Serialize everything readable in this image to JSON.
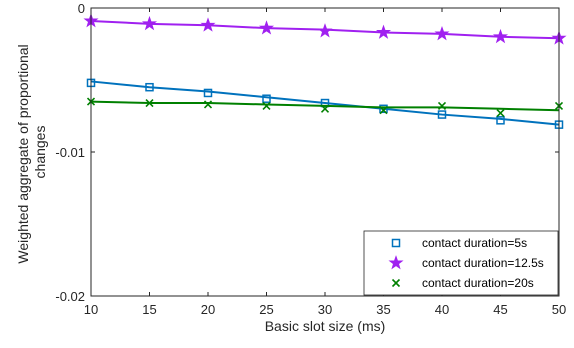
{
  "chart_data": {
    "type": "line",
    "xlabel": "Basic slot size (ms)",
    "ylabel_lines": [
      "Weighted aggregate of proportional",
      "changes"
    ],
    "x": [
      10,
      15,
      20,
      25,
      30,
      35,
      40,
      45,
      50
    ],
    "xlim": [
      10,
      50
    ],
    "ylim": [
      -0.02,
      0
    ],
    "x_ticks": [
      10,
      15,
      20,
      25,
      30,
      35,
      40,
      45,
      50
    ],
    "y_ticks": [
      0,
      -0.01,
      -0.02
    ],
    "y_tick_labels": [
      "0",
      "-0.01",
      "-0.02"
    ],
    "grid": false,
    "legend_position": "bottom-right",
    "series": [
      {
        "name": "contact duration=5s",
        "marker": "square",
        "color": "#0072BD",
        "markers": [
          -0.0052,
          -0.0055,
          -0.0059,
          -0.0063,
          -0.0066,
          -0.007,
          -0.0074,
          -0.0078,
          -0.0081
        ],
        "fit": [
          -0.0051,
          -0.0055,
          -0.0058,
          -0.0062,
          -0.0066,
          -0.007,
          -0.0074,
          -0.0077,
          -0.0081
        ]
      },
      {
        "name": "contact duration=12.5s",
        "marker": "star",
        "color": "#A020F0",
        "markers": [
          -0.0009,
          -0.0011,
          -0.0012,
          -0.0014,
          -0.0016,
          -0.0017,
          -0.0018,
          -0.002,
          -0.0021
        ],
        "fit": [
          -0.0009,
          -0.0011,
          -0.0012,
          -0.0014,
          -0.0015,
          -0.0017,
          -0.0018,
          -0.002,
          -0.0021
        ]
      },
      {
        "name": "contact duration=20s",
        "marker": "x",
        "color": "#008000",
        "markers": [
          -0.0065,
          -0.0066,
          -0.0067,
          -0.0068,
          -0.007,
          -0.0071,
          -0.0068,
          -0.0073,
          -0.0068
        ],
        "fit": [
          -0.0065,
          -0.0066,
          -0.0066,
          -0.0067,
          -0.0068,
          -0.0069,
          -0.0069,
          -0.007,
          -0.0071
        ]
      }
    ]
  }
}
